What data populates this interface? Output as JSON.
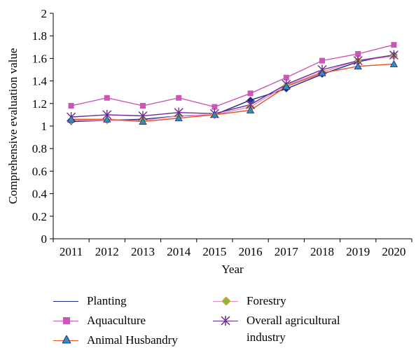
{
  "chart_data": {
    "type": "line",
    "title": "",
    "xlabel": "Year",
    "ylabel": "Comprehensive evaluation value",
    "categories": [
      "2011",
      "2012",
      "2013",
      "2014",
      "2015",
      "2016",
      "2017",
      "2018",
      "2019",
      "2020"
    ],
    "ylim": [
      0,
      2
    ],
    "yticks": [
      "0",
      "0.2",
      "0.4",
      "0.6",
      "0.8",
      "1",
      "1.2",
      "1.4",
      "1.6",
      "1.8",
      "2"
    ],
    "grid": false,
    "legend_position": "bottom",
    "series": [
      {
        "name": "Planting",
        "color": "#1f2a8a",
        "marker": "diamond",
        "values": [
          1.04,
          1.05,
          1.06,
          1.09,
          1.1,
          1.23,
          1.33,
          1.46,
          1.57,
          1.63
        ]
      },
      {
        "name": "Aquaculture",
        "color": "#cc55b8",
        "marker": "square",
        "values": [
          1.18,
          1.25,
          1.18,
          1.25,
          1.17,
          1.29,
          1.43,
          1.58,
          1.64,
          1.72
        ]
      },
      {
        "name": "Animal Husbandry",
        "color": "#e8501f",
        "marker": "triangle",
        "values": [
          1.06,
          1.06,
          1.04,
          1.07,
          1.1,
          1.14,
          1.35,
          1.47,
          1.53,
          1.55
        ]
      },
      {
        "name": "Forestry",
        "color": "#d98cd0",
        "marker": "diamond-fill",
        "values": [
          1.05,
          1.05,
          1.05,
          1.09,
          1.1,
          1.17,
          1.36,
          1.48,
          1.58,
          1.62
        ]
      },
      {
        "name": "Overall agricultural industry",
        "color": "#6b2c8f",
        "marker": "asterisk",
        "values": [
          1.08,
          1.1,
          1.09,
          1.12,
          1.11,
          1.19,
          1.37,
          1.5,
          1.58,
          1.63
        ]
      }
    ]
  },
  "legend": {
    "planting": "Planting",
    "aquaculture": "Aquaculture",
    "animal_husbandry": "Animal Husbandry",
    "forestry": "Forestry",
    "overall_line1": "Overall agricultural",
    "overall_line2": "industry"
  }
}
